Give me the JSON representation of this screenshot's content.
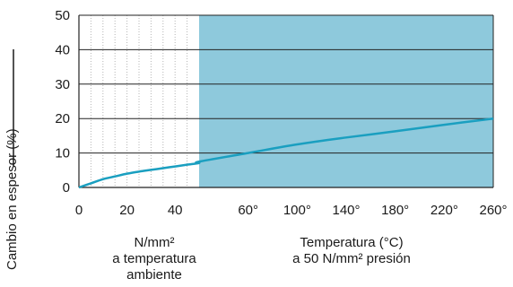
{
  "chart_data": {
    "type": "line",
    "ylabel": "Cambio en espesor (%)",
    "ylim": [
      0,
      50
    ],
    "yticks": [
      "0",
      "10",
      "20",
      "30",
      "40",
      "50"
    ],
    "grid": true,
    "left_panel": {
      "caption_lines": [
        "N/mm²",
        "a temperatura",
        "ambiente"
      ],
      "xticks": [
        "0",
        "20",
        "40"
      ],
      "x": [
        0,
        5,
        10,
        15,
        20,
        25,
        30,
        35,
        40,
        45,
        50
      ],
      "y": [
        0,
        1.2,
        2.4,
        3.2,
        4.0,
        4.6,
        5.1,
        5.6,
        6.1,
        6.6,
        7.1
      ]
    },
    "right_panel": {
      "caption_lines": [
        "Temperatura (°C)",
        "a 50 N/mm² presión"
      ],
      "xticks": [
        "60°",
        "100°",
        "140°",
        "180°",
        "220°",
        "260°"
      ],
      "x": [
        20,
        60,
        100,
        140,
        180,
        220,
        260
      ],
      "y": [
        7.5,
        10.0,
        12.5,
        14.5,
        16.3,
        18.2,
        20.0
      ]
    },
    "colors": {
      "line": "#1a9fc0",
      "shade": "#8ec9dc",
      "grid": "#222222"
    }
  }
}
